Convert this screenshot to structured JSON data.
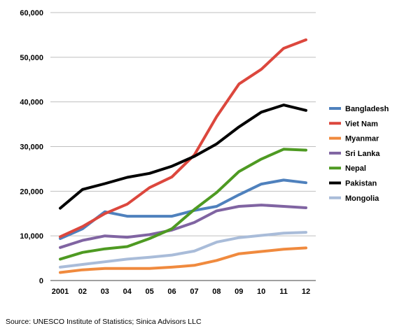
{
  "chart_data": {
    "type": "line",
    "title": "",
    "xlabel": "",
    "ylabel": "",
    "ylim": [
      0,
      60000
    ],
    "yticks": [
      0,
      10000,
      20000,
      30000,
      40000,
      50000,
      60000
    ],
    "ytick_labels": [
      "0",
      "10,000",
      "20,000",
      "30,000",
      "40,000",
      "50,000",
      "60,000"
    ],
    "categories": [
      "2001",
      "02",
      "03",
      "04",
      "05",
      "06",
      "07",
      "08",
      "09",
      "10",
      "11",
      "12"
    ],
    "grid": true,
    "legend_position": "right",
    "series": [
      {
        "name": "Bangladesh",
        "color": "#4f81bd",
        "values": [
          9400,
          11600,
          15400,
          14400,
          14400,
          14400,
          15700,
          16600,
          19200,
          21600,
          22500,
          21900
        ]
      },
      {
        "name": "Viet Nam",
        "color": "#dc473d",
        "values": [
          9800,
          12100,
          15000,
          17100,
          20800,
          23200,
          28100,
          36700,
          44000,
          47300,
          52000,
          53900
        ]
      },
      {
        "name": "Myanmar",
        "color": "#f08a3e",
        "values": [
          1800,
          2400,
          2700,
          2700,
          2700,
          3000,
          3400,
          4500,
          6000,
          6500,
          7000,
          7300
        ]
      },
      {
        "name": "Sri Lanka",
        "color": "#8064a2",
        "values": [
          7400,
          9000,
          10000,
          9700,
          10300,
          11300,
          13000,
          15600,
          16600,
          16900,
          16600,
          16300
        ]
      },
      {
        "name": "Nepal",
        "color": "#4e9a22",
        "values": [
          4800,
          6300,
          7100,
          7600,
          9400,
          11600,
          15900,
          19700,
          24400,
          27200,
          29400,
          29200
        ]
      },
      {
        "name": "Pakistan",
        "color": "#000000",
        "values": [
          16200,
          20400,
          21700,
          23100,
          24000,
          25600,
          27800,
          30600,
          34400,
          37700,
          39300,
          38100
        ]
      },
      {
        "name": "Mongolia",
        "color": "#a9bcd9",
        "values": [
          3000,
          3600,
          4200,
          4800,
          5200,
          5700,
          6600,
          8600,
          9600,
          10100,
          10600,
          10800
        ]
      }
    ]
  },
  "source": "Source: UNESCO Institute of Statistics; Sinica Advisors LLC"
}
